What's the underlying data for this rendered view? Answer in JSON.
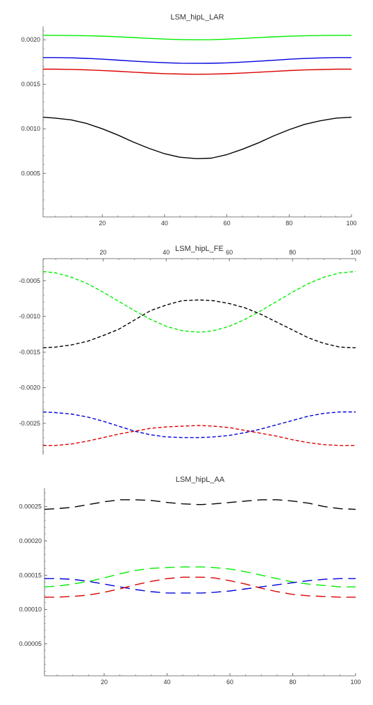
{
  "chart_data": [
    {
      "type": "line",
      "title": "LSM_hipL_LAR",
      "xlabel": "",
      "ylabel": "",
      "xlim": [
        1,
        100
      ],
      "ylim": [
        1e-05,
        0.00215
      ],
      "x_ticks": [
        20,
        40,
        60,
        80,
        100
      ],
      "x_tick_labels": [
        "20",
        "40",
        "60",
        "80",
        "100"
      ],
      "y_ticks": [
        0.0005,
        0.001,
        0.0015,
        0.002
      ],
      "y_tick_labels": [
        "0.0005",
        "0.0010",
        "0.0015",
        "0.0020"
      ],
      "x_axis_position": "bottom",
      "grid": false,
      "line_style": "solid",
      "x": [
        1,
        5,
        10,
        15,
        20,
        25,
        30,
        35,
        40,
        45,
        50,
        51,
        55,
        60,
        65,
        70,
        75,
        80,
        85,
        90,
        95,
        100
      ],
      "series": [
        {
          "color": "#00ee00",
          "values": [
            0.00205,
            0.00205,
            0.002048,
            0.002045,
            0.002041,
            0.002034,
            0.002025,
            0.002016,
            0.002008,
            0.002002,
            0.002,
            0.002,
            0.002001,
            0.002007,
            0.002015,
            0.002024,
            0.002033,
            0.00204,
            0.002045,
            0.002048,
            0.00205,
            0.00205
          ]
        },
        {
          "color": "#0000dd",
          "values": [
            0.0018,
            0.0018,
            0.001797,
            0.001791,
            0.001782,
            0.001771,
            0.00176,
            0.00175,
            0.001742,
            0.001737,
            0.001735,
            0.001735,
            0.001736,
            0.001741,
            0.001749,
            0.001759,
            0.00177,
            0.001781,
            0.00179,
            0.001796,
            0.0018,
            0.0018
          ]
        },
        {
          "color": "#dd0000",
          "values": [
            0.00167,
            0.00167,
            0.001667,
            0.001662,
            0.001655,
            0.001646,
            0.001636,
            0.001627,
            0.00162,
            0.001615,
            0.001613,
            0.001613,
            0.001614,
            0.001619,
            0.001626,
            0.001635,
            0.001645,
            0.001654,
            0.001661,
            0.001666,
            0.00167,
            0.00167
          ]
        },
        {
          "color": "#000000",
          "values": [
            0.00113,
            0.00112,
            0.0011,
            0.00106,
            0.001,
            0.00093,
            0.00085,
            0.00078,
            0.00072,
            0.00068,
            0.000665,
            0.000665,
            0.00067,
            0.00071,
            0.00077,
            0.00084,
            0.00092,
            0.00099,
            0.00105,
            0.00109,
            0.00112,
            0.00113
          ]
        }
      ]
    },
    {
      "type": "line",
      "title": "LSM_hipL_FE",
      "xlabel": "",
      "ylabel": "",
      "xlim": [
        1,
        100
      ],
      "ylim": [
        -0.00294,
        -0.00019
      ],
      "x_ticks": [
        20,
        40,
        60,
        80,
        100
      ],
      "x_tick_labels": [
        "20",
        "40",
        "60",
        "80",
        "100"
      ],
      "y_ticks": [
        -0.0005,
        -0.001,
        -0.0015,
        -0.002,
        -0.0025
      ],
      "y_tick_labels": [
        "-0.0005",
        "-0.0010",
        "-0.0015",
        "-0.0020",
        "-0.0025"
      ],
      "x_axis_position": "top",
      "grid": false,
      "line_style": "dashed",
      "x": [
        1,
        5,
        10,
        15,
        20,
        25,
        30,
        35,
        40,
        45,
        50,
        51,
        55,
        60,
        65,
        70,
        75,
        80,
        85,
        90,
        95,
        100
      ],
      "series": [
        {
          "color": "#00ee00",
          "values": [
            -0.00037,
            -0.00039,
            -0.00045,
            -0.00054,
            -0.00066,
            -0.00079,
            -0.00092,
            -0.00104,
            -0.00114,
            -0.0012,
            -0.00122,
            -0.00122,
            -0.0012,
            -0.00114,
            -0.00104,
            -0.00092,
            -0.00079,
            -0.00066,
            -0.00054,
            -0.00045,
            -0.00039,
            -0.00037
          ]
        },
        {
          "color": "#000000",
          "values": [
            -0.00144,
            -0.00143,
            -0.0014,
            -0.00135,
            -0.00127,
            -0.00118,
            -0.00105,
            -0.00092,
            -0.00084,
            -0.00078,
            -0.00077,
            -0.00077,
            -0.00078,
            -0.00082,
            -0.00088,
            -0.00097,
            -0.00108,
            -0.00119,
            -0.0013,
            -0.00138,
            -0.00143,
            -0.00144
          ]
        },
        {
          "color": "#0000dd",
          "values": [
            -0.00234,
            -0.00235,
            -0.00237,
            -0.00241,
            -0.00247,
            -0.00254,
            -0.00261,
            -0.00266,
            -0.00269,
            -0.0027,
            -0.0027,
            -0.0027,
            -0.00269,
            -0.00267,
            -0.00263,
            -0.00258,
            -0.00252,
            -0.00246,
            -0.0024,
            -0.00236,
            -0.00234,
            -0.00234
          ]
        },
        {
          "color": "#dd0000",
          "values": [
            -0.00281,
            -0.00281,
            -0.00279,
            -0.00275,
            -0.0027,
            -0.00265,
            -0.00261,
            -0.00257,
            -0.00255,
            -0.00254,
            -0.00253,
            -0.00253,
            -0.00254,
            -0.00256,
            -0.0026,
            -0.00264,
            -0.00268,
            -0.00273,
            -0.00277,
            -0.0028,
            -0.00281,
            -0.00281
          ]
        }
      ]
    },
    {
      "type": "line",
      "title": "LSM_hipL_AA",
      "xlabel": "",
      "ylabel": "",
      "xlim": [
        1,
        100
      ],
      "ylim": [
        3.3e-06,
        0.000277
      ],
      "x_ticks": [
        20,
        40,
        60,
        80,
        100
      ],
      "x_tick_labels": [
        "20",
        "40",
        "60",
        "80",
        "100"
      ],
      "y_ticks": [
        5e-05,
        0.0001,
        0.00015,
        0.0002,
        0.00025
      ],
      "y_tick_labels": [
        "0.00005",
        "0.00010",
        "0.00015",
        "0.00020",
        "0.00025"
      ],
      "x_axis_position": "bottom",
      "grid": false,
      "line_style": "long-dashed",
      "x": [
        1,
        5,
        10,
        15,
        20,
        25,
        30,
        35,
        40,
        45,
        50,
        51,
        55,
        60,
        65,
        70,
        75,
        80,
        85,
        90,
        95,
        100
      ],
      "series": [
        {
          "color": "#000000",
          "values": [
            0.000246,
            0.000247,
            0.000249,
            0.000253,
            0.000257,
            0.00026,
            0.00026,
            0.000259,
            0.000256,
            0.000254,
            0.000253,
            0.000253,
            0.000254,
            0.000256,
            0.000258,
            0.00026,
            0.00026,
            0.000258,
            0.000255,
            0.00025,
            0.000247,
            0.000246
          ]
        },
        {
          "color": "#00ee00",
          "values": [
            0.000133,
            0.000134,
            0.000137,
            0.000141,
            0.000146,
            0.000152,
            0.000157,
            0.00016,
            0.000161,
            0.000162,
            0.000162,
            0.000162,
            0.000161,
            0.000159,
            0.000155,
            0.00015,
            0.000145,
            0.00014,
            0.000137,
            0.000135,
            0.000133,
            0.000133
          ]
        },
        {
          "color": "#0000dd",
          "values": [
            0.000145,
            0.000145,
            0.000144,
            0.000141,
            0.000137,
            0.000133,
            0.000129,
            0.000126,
            0.000124,
            0.000124,
            0.000124,
            0.000124,
            0.000125,
            0.000127,
            0.00013,
            0.000133,
            0.000136,
            0.000139,
            0.000142,
            0.000144,
            0.000145,
            0.000145
          ]
        },
        {
          "color": "#dd0000",
          "values": [
            0.000118,
            0.000118,
            0.000119,
            0.000121,
            0.000125,
            0.00013,
            0.000136,
            0.000141,
            0.000145,
            0.000147,
            0.000147,
            0.000147,
            0.000146,
            0.000142,
            0.000137,
            0.000131,
            0.000126,
            0.000122,
            0.00012,
            0.000119,
            0.000118,
            0.000118
          ]
        }
      ]
    }
  ]
}
